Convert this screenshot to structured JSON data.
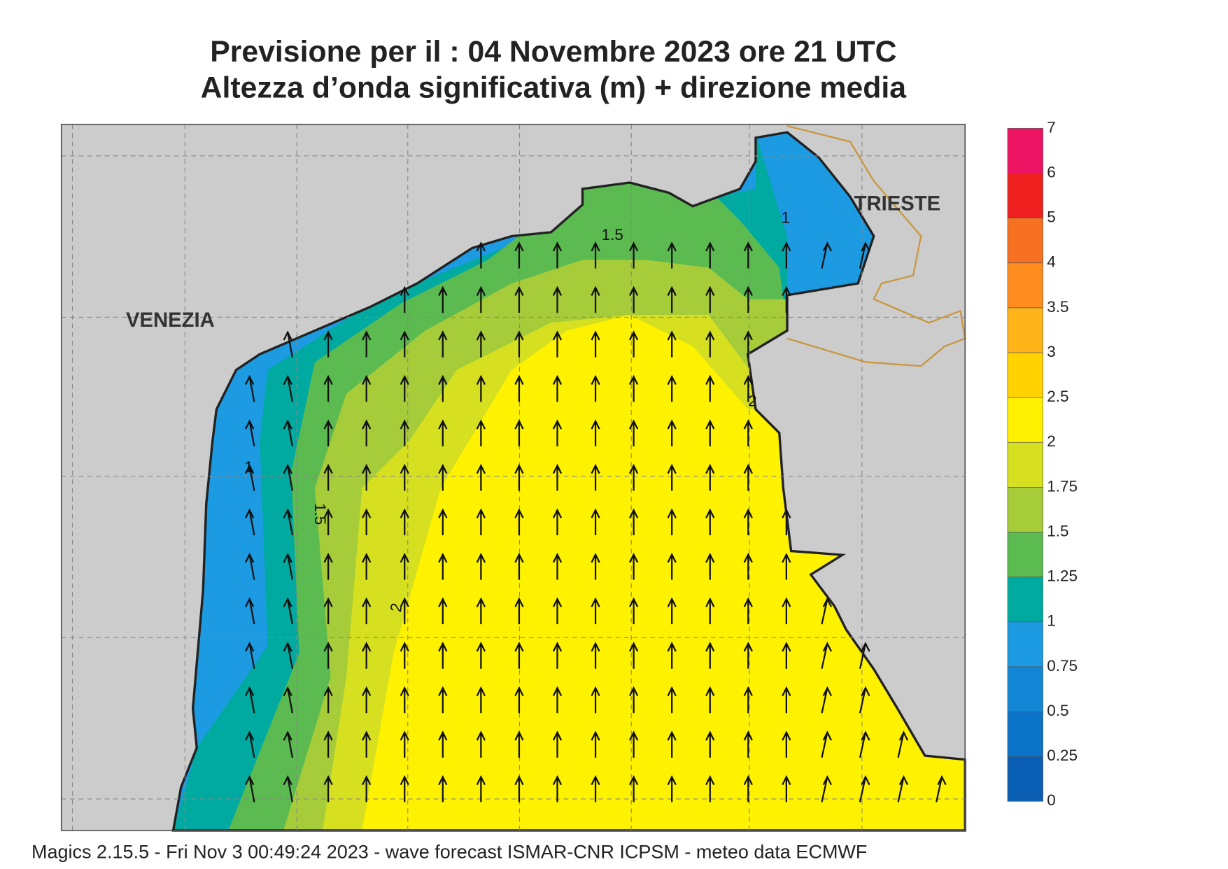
{
  "header": {
    "title": "Previsione per il  :  04 Novembre  2023   ore 21 UTC",
    "subtitle": "Altezza d’onda significativa (m) + direzione media"
  },
  "map": {
    "cities": [
      "VENEZIA",
      "TRIESTE"
    ],
    "contour_labels": [
      "1.5",
      "1",
      "2",
      "1",
      "1.5",
      "2"
    ]
  },
  "colorbar": {
    "ticks": [
      0,
      0.25,
      0.5,
      0.75,
      1,
      1.25,
      1.5,
      1.75,
      2,
      2.5,
      3,
      3.5,
      4,
      5,
      6,
      7
    ],
    "colors": [
      "#0a5fb4",
      "#0b74c8",
      "#1387d6",
      "#1c9be3",
      "#00aaa0",
      "#5bba50",
      "#a6cc3a",
      "#d7e020",
      "#fff200",
      "#ffd200",
      "#ffb419",
      "#ff8c1e",
      "#f57020",
      "#ee2020",
      "#ee1464"
    ]
  },
  "footer": "Magics 2.15.5 - Fri Nov  3 00:49:24 2023 - wave forecast  ISMAR-CNR  ICPSM - meteo data   ECMWF"
}
